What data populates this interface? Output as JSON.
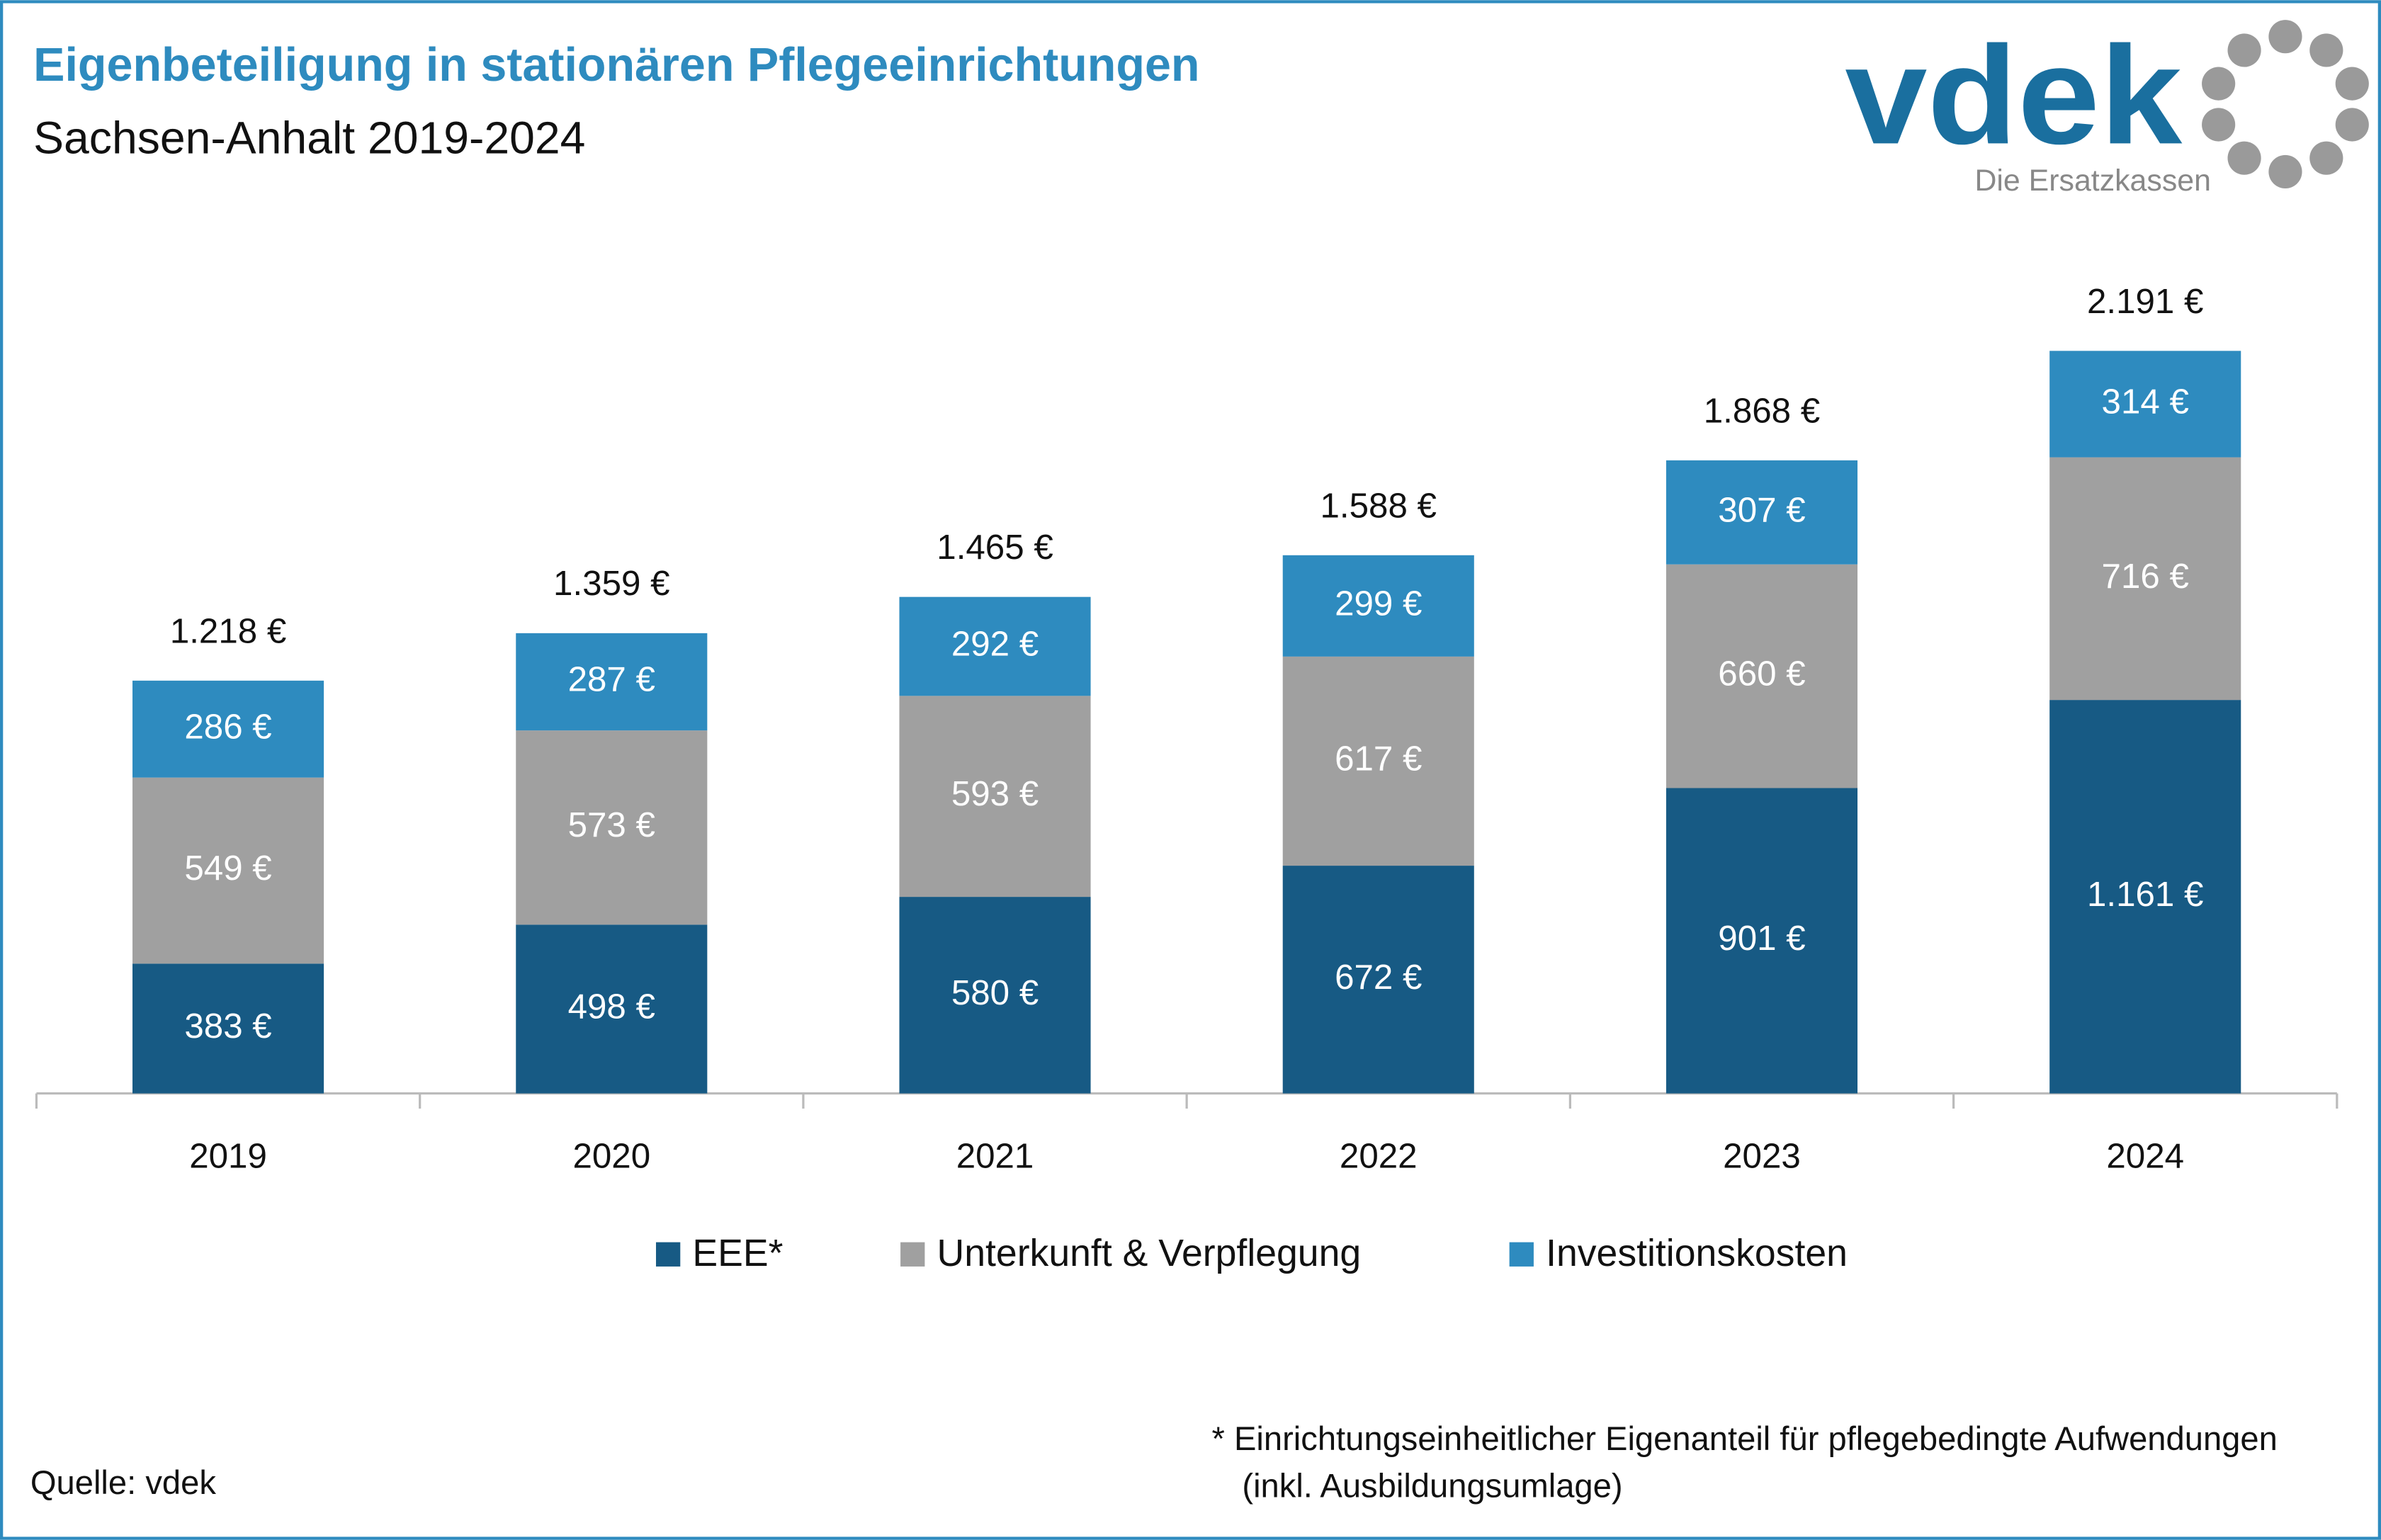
{
  "chart_data": {
    "type": "stacked_bar",
    "title": "Eigenbeteiligung in stationären Pflegeeinrichtungen",
    "subtitle": "Sachsen-Anhalt 2019-2024",
    "logo": "vdek",
    "logo_tagline": "Die Ersatzkassen",
    "categories": [
      "2019",
      "2020",
      "2021",
      "2022",
      "2023",
      "2024"
    ],
    "series": [
      {
        "name": "EEE*",
        "color": "#175a84",
        "values": [
          383,
          498,
          580,
          672,
          901,
          1161
        ],
        "value_labels": [
          "383 €",
          "498 €",
          "580 €",
          "672 €",
          "901 €",
          "1.161 €"
        ]
      },
      {
        "name": "Unterkunft & Verpflegung",
        "color": "#a0a0a0",
        "values": [
          549,
          573,
          593,
          617,
          660,
          716
        ],
        "value_labels": [
          "549 €",
          "573 €",
          "593 €",
          "617 €",
          "660 €",
          "716 €"
        ]
      },
      {
        "name": "Investitionskosten",
        "color": "#2e8bbf",
        "values": [
          286,
          287,
          292,
          299,
          307,
          314
        ],
        "value_labels": [
          "286 €",
          "287 €",
          "292 €",
          "299 €",
          "307 €",
          "314 €"
        ]
      }
    ],
    "totals": {
      "values": [
        1218,
        1359,
        1465,
        1588,
        1868,
        2191
      ],
      "value_labels": [
        "1.218 €",
        "1.359 €",
        "1.465 €",
        "1.588 €",
        "1.868 €",
        "2.191 €"
      ]
    },
    "ylim": [
      0,
      2500
    ],
    "legend": "bottom",
    "source": "Quelle: vdek",
    "footnote": [
      "* Einrichtungseinheitlicher Eigenanteil für pflegebedingte Aufwendungen",
      "(inkl. Ausbildungsumlage)"
    ]
  }
}
